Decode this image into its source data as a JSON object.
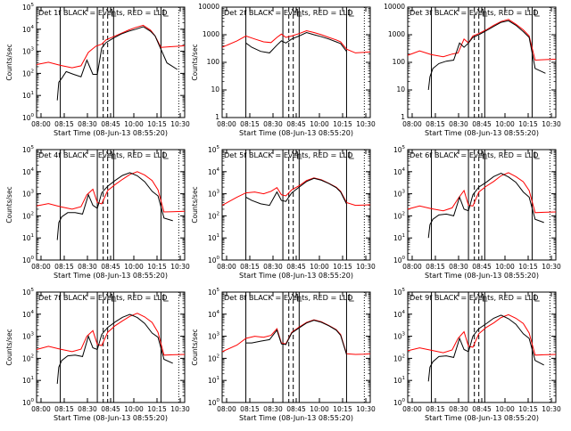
{
  "figure": {
    "time_label_prefix": "Start Time (",
    "time_label_start": "08-Jun-13 08:55:20",
    "time_label_suffix": ")"
  },
  "chart_data": [
    {
      "type": "line",
      "title": "Det 1f BLACK = Events, RED = LLD",
      "ylabel": "Counts/sec",
      "yscale": "log",
      "ylim": [
        1,
        100000
      ],
      "ytick_base": "10",
      "ytick_exponents": [
        "0",
        "1",
        "2",
        "3",
        "4",
        "5"
      ],
      "xticks": [
        "08:00",
        "08:15",
        "08:30",
        "08:45",
        "10:00",
        "10:15",
        "10:30"
      ],
      "series": [
        {
          "color": "#ff0000",
          "x": [
            0.0,
            0.08,
            0.16,
            0.24,
            0.3,
            0.35,
            0.4,
            0.44,
            0.47,
            0.52,
            0.57,
            0.62,
            0.67,
            0.72,
            0.77,
            0.8,
            0.84,
            0.9,
            0.96,
            1.0
          ],
          "y": [
            250,
            320,
            230,
            180,
            220,
            900,
            1700,
            2100,
            3300,
            4600,
            6400,
            9000,
            12000,
            15000,
            9000,
            5000,
            1500,
            1600,
            1700,
            1800
          ]
        },
        {
          "color": "#000000",
          "x": [
            0.14,
            0.15,
            0.17,
            0.2,
            0.25,
            0.3,
            0.34,
            0.38,
            0.41,
            0.44,
            0.47,
            0.52,
            0.57,
            0.62,
            0.67,
            0.72,
            0.77,
            0.8,
            0.88,
            0.95
          ],
          "y": [
            6,
            40,
            60,
            120,
            90,
            70,
            400,
            90,
            90,
            1400,
            2500,
            4000,
            6000,
            8000,
            10000,
            13000,
            8000,
            5000,
            300,
            150
          ]
        }
      ],
      "shade_x": [
        0.16,
        0.87
      ]
    },
    {
      "type": "line",
      "title": "Det 2f BLACK = Events, RED = LLD",
      "ylabel": "Counts/sec",
      "yscale": "log",
      "ylim": [
        1,
        10000
      ],
      "ytick_labels": [
        "1",
        "10",
        "100",
        "1000",
        "10000"
      ],
      "xticks": [
        "08:00",
        "08:15",
        "08:30",
        "08:45",
        "10:00",
        "10:15",
        "10:30"
      ],
      "series": [
        {
          "color": "#ff0000",
          "x": [
            0.0,
            0.1,
            0.16,
            0.22,
            0.28,
            0.33,
            0.37,
            0.4,
            0.43,
            0.47,
            0.52,
            0.57,
            0.62,
            0.67,
            0.72,
            0.77,
            0.8,
            0.84,
            0.9,
            0.96,
            1.0
          ],
          "y": [
            350,
            600,
            900,
            700,
            550,
            520,
            800,
            1050,
            800,
            900,
            1100,
            1400,
            1200,
            1000,
            800,
            650,
            550,
            300,
            220,
            230,
            240
          ]
        },
        {
          "color": "#000000",
          "x": [
            0.16,
            0.2,
            0.26,
            0.32,
            0.37,
            0.4,
            0.43,
            0.47,
            0.52,
            0.57,
            0.62,
            0.67,
            0.72,
            0.77,
            0.8,
            0.84
          ],
          "y": [
            500,
            350,
            250,
            220,
            420,
            600,
            500,
            700,
            900,
            1200,
            1000,
            850,
            700,
            550,
            480,
            250
          ]
        }
      ],
      "shade_x": [
        0.16,
        0.84
      ]
    },
    {
      "type": "line",
      "title": "Det 3f BLACK = Events, RED = LLD",
      "ylabel": "",
      "yscale": "log",
      "ylim": [
        1,
        10000
      ],
      "ytick_labels": [
        "1",
        "10",
        "100",
        "1000",
        "10000"
      ],
      "xticks": [
        "08:00",
        "08:15",
        "08:30",
        "08:45",
        "10:00",
        "10:15",
        "10:30"
      ],
      "series": [
        {
          "color": "#ff0000",
          "x": [
            0.0,
            0.08,
            0.16,
            0.24,
            0.3,
            0.34,
            0.38,
            0.41,
            0.44,
            0.48,
            0.53,
            0.58,
            0.63,
            0.68,
            0.73,
            0.78,
            0.82,
            0.86,
            0.92,
            1.0
          ],
          "y": [
            180,
            260,
            190,
            160,
            200,
            220,
            700,
            500,
            900,
            1100,
            1500,
            2200,
            3000,
            3600,
            2400,
            1500,
            900,
            120,
            125,
            130
          ]
        },
        {
          "color": "#000000",
          "x": [
            0.14,
            0.15,
            0.17,
            0.21,
            0.26,
            0.31,
            0.35,
            0.38,
            0.41,
            0.44,
            0.48,
            0.53,
            0.58,
            0.63,
            0.68,
            0.73,
            0.78,
            0.82,
            0.86,
            0.93
          ],
          "y": [
            10,
            30,
            60,
            90,
            110,
            120,
            500,
            350,
            500,
            800,
            1000,
            1400,
            2000,
            2800,
            3200,
            2200,
            1300,
            800,
            60,
            40
          ]
        }
      ],
      "shade_x": [
        0.16,
        0.86
      ]
    },
    {
      "type": "line",
      "title": "Det 4f BLACK = Events, RED = LLD",
      "ylabel": "Counts/sec",
      "yscale": "log",
      "ylim": [
        1,
        100000
      ],
      "ytick_base": "10",
      "ytick_exponents": [
        "0",
        "1",
        "2",
        "3",
        "4",
        "5"
      ],
      "xticks": [
        "08:00",
        "08:15",
        "08:30",
        "08:45",
        "10:00",
        "10:15",
        "10:30"
      ],
      "series": [
        {
          "color": "#ff0000",
          "x": [
            0.0,
            0.08,
            0.16,
            0.24,
            0.3,
            0.34,
            0.38,
            0.41,
            0.44,
            0.48,
            0.53,
            0.58,
            0.63,
            0.68,
            0.73,
            0.78,
            0.82,
            0.86,
            0.92,
            1.0
          ],
          "y": [
            280,
            360,
            260,
            200,
            260,
            900,
            1600,
            400,
            350,
            1400,
            2600,
            4500,
            7500,
            10000,
            7000,
            4000,
            1500,
            150,
            155,
            160
          ]
        },
        {
          "color": "#000000",
          "x": [
            0.14,
            0.15,
            0.17,
            0.21,
            0.26,
            0.31,
            0.35,
            0.38,
            0.41,
            0.44,
            0.48,
            0.53,
            0.58,
            0.63,
            0.68,
            0.73,
            0.78,
            0.82,
            0.86,
            0.92
          ],
          "y": [
            8,
            50,
            90,
            140,
            140,
            120,
            900,
            300,
            220,
            1100,
            2200,
            4000,
            6800,
            9000,
            6500,
            3500,
            1300,
            800,
            80,
            60
          ]
        }
      ],
      "shade_x": [
        0.16,
        0.86
      ]
    },
    {
      "type": "line",
      "title": "Det 5f BLACK = Events, RED = LLD",
      "ylabel": "Counts/sec",
      "yscale": "log",
      "ylim": [
        1,
        100000
      ],
      "ytick_base": "10",
      "ytick_exponents": [
        "0",
        "1",
        "2",
        "3",
        "4",
        "5"
      ],
      "xticks": [
        "08:00",
        "08:15",
        "08:30",
        "08:45",
        "10:00",
        "10:15",
        "10:30"
      ],
      "series": [
        {
          "color": "#ff0000",
          "x": [
            0.0,
            0.1,
            0.16,
            0.22,
            0.28,
            0.33,
            0.37,
            0.4,
            0.43,
            0.47,
            0.52,
            0.57,
            0.62,
            0.67,
            0.72,
            0.77,
            0.8,
            0.84,
            0.9,
            0.96,
            1.0
          ],
          "y": [
            300,
            700,
            1100,
            1200,
            1000,
            1300,
            1900,
            900,
            800,
            1500,
            2300,
            4000,
            5200,
            4300,
            3000,
            2000,
            1300,
            400,
            300,
            310,
            320
          ]
        },
        {
          "color": "#000000",
          "x": [
            0.16,
            0.2,
            0.26,
            0.32,
            0.37,
            0.4,
            0.43,
            0.47,
            0.52,
            0.57,
            0.62,
            0.67,
            0.72,
            0.77,
            0.8,
            0.84
          ],
          "y": [
            700,
            500,
            350,
            300,
            1200,
            500,
            450,
            1100,
            2000,
            3600,
            5000,
            4100,
            2900,
            1900,
            1200,
            350
          ]
        }
      ],
      "shade_x": [
        0.16,
        0.84
      ]
    },
    {
      "type": "line",
      "title": "Det 6f BLACK = Events, RED = LLD",
      "ylabel": "",
      "yscale": "log",
      "ylim": [
        1,
        100000
      ],
      "ytick_base": "10",
      "ytick_exponents": [
        "0",
        "1",
        "2",
        "3",
        "4",
        "5"
      ],
      "xticks": [
        "08:00",
        "08:15",
        "08:30",
        "08:45",
        "10:00",
        "10:15",
        "10:30"
      ],
      "series": [
        {
          "color": "#ff0000",
          "x": [
            0.0,
            0.08,
            0.16,
            0.24,
            0.3,
            0.34,
            0.38,
            0.41,
            0.44,
            0.48,
            0.53,
            0.58,
            0.63,
            0.68,
            0.73,
            0.78,
            0.82,
            0.86,
            0.92,
            1.0
          ],
          "y": [
            200,
            280,
            210,
            170,
            230,
            600,
            1400,
            300,
            280,
            1200,
            2200,
            3600,
            6500,
            9000,
            6000,
            3500,
            1400,
            140,
            145,
            150
          ]
        },
        {
          "color": "#000000",
          "x": [
            0.14,
            0.15,
            0.17,
            0.21,
            0.26,
            0.31,
            0.35,
            0.38,
            0.41,
            0.44,
            0.48,
            0.53,
            0.58,
            0.63,
            0.68,
            0.73,
            0.78,
            0.82,
            0.86,
            0.92
          ],
          "y": [
            10,
            40,
            70,
            110,
            120,
            100,
            700,
            200,
            170,
            900,
            2000,
            3300,
            6000,
            8500,
            5800,
            3300,
            1200,
            700,
            70,
            50
          ]
        }
      ],
      "shade_x": [
        0.16,
        0.86
      ]
    },
    {
      "type": "line",
      "title": "Det 7f BLACK = Events, RED = LLD",
      "ylabel": "Counts/sec",
      "yscale": "log",
      "ylim": [
        1,
        100000
      ],
      "ytick_base": "10",
      "ytick_exponents": [
        "0",
        "1",
        "2",
        "3",
        "4",
        "5"
      ],
      "xticks": [
        "08:00",
        "08:15",
        "08:30",
        "08:45",
        "10:00",
        "10:15",
        "10:30"
      ],
      "series": [
        {
          "color": "#ff0000",
          "x": [
            0.0,
            0.08,
            0.16,
            0.24,
            0.3,
            0.34,
            0.38,
            0.41,
            0.44,
            0.48,
            0.53,
            0.58,
            0.63,
            0.68,
            0.73,
            0.78,
            0.82,
            0.86,
            0.92,
            1.0
          ],
          "y": [
            250,
            350,
            260,
            200,
            260,
            1000,
            1800,
            420,
            380,
            1500,
            3000,
            5000,
            8000,
            11000,
            7500,
            4200,
            1500,
            140,
            145,
            150
          ]
        },
        {
          "color": "#000000",
          "x": [
            0.14,
            0.15,
            0.17,
            0.21,
            0.26,
            0.31,
            0.35,
            0.38,
            0.41,
            0.44,
            0.48,
            0.53,
            0.58,
            0.63,
            0.68,
            0.73,
            0.78,
            0.82,
            0.86,
            0.92
          ],
          "y": [
            7,
            40,
            80,
            130,
            140,
            120,
            1000,
            300,
            250,
            1200,
            2500,
            4400,
            7200,
            9800,
            7000,
            3800,
            1400,
            900,
            90,
            60
          ]
        }
      ],
      "shade_x": [
        0.16,
        0.86
      ]
    },
    {
      "type": "line",
      "title": "Det 8f BLACK = Events, RED = LLD",
      "ylabel": "Counts/sec",
      "yscale": "log",
      "ylim": [
        1,
        100000
      ],
      "ytick_base": "10",
      "ytick_exponents": [
        "0",
        "1",
        "2",
        "3",
        "4",
        "5"
      ],
      "xticks": [
        "08:00",
        "08:15",
        "08:30",
        "08:45",
        "10:00",
        "10:15",
        "10:30"
      ],
      "series": [
        {
          "color": "#ff0000",
          "x": [
            0.0,
            0.1,
            0.16,
            0.22,
            0.28,
            0.33,
            0.37,
            0.4,
            0.43,
            0.47,
            0.52,
            0.57,
            0.62,
            0.67,
            0.72,
            0.77,
            0.8,
            0.84,
            0.9,
            0.96,
            1.0
          ],
          "y": [
            200,
            400,
            800,
            1000,
            900,
            1100,
            2200,
            500,
            450,
            1500,
            2600,
            4200,
            5500,
            4500,
            3100,
            2000,
            1200,
            160,
            150,
            155,
            160
          ]
        },
        {
          "color": "#000000",
          "x": [
            0.16,
            0.2,
            0.26,
            0.32,
            0.37,
            0.4,
            0.43,
            0.47,
            0.52,
            0.57,
            0.62,
            0.67,
            0.72,
            0.77,
            0.8,
            0.84
          ],
          "y": [
            500,
            500,
            600,
            700,
            1900,
            450,
            420,
            1400,
            2400,
            4000,
            5300,
            4300,
            3000,
            1900,
            1100,
            150
          ]
        }
      ],
      "shade_x": [
        0.16,
        0.84
      ]
    },
    {
      "type": "line",
      "title": "Det 9f BLACK = Events, RED = LLD",
      "ylabel": "",
      "yscale": "log",
      "ylim": [
        1,
        100000
      ],
      "ytick_base": "10",
      "ytick_exponents": [
        "0",
        "1",
        "2",
        "3",
        "4",
        "5"
      ],
      "xticks": [
        "08:00",
        "08:15",
        "08:30",
        "08:45",
        "10:00",
        "10:15",
        "10:30"
      ],
      "series": [
        {
          "color": "#ff0000",
          "x": [
            0.0,
            0.08,
            0.16,
            0.24,
            0.3,
            0.34,
            0.38,
            0.41,
            0.44,
            0.48,
            0.53,
            0.58,
            0.63,
            0.68,
            0.73,
            0.78,
            0.82,
            0.86,
            0.92,
            1.0
          ],
          "y": [
            220,
            300,
            230,
            180,
            240,
            800,
            1600,
            350,
            320,
            1300,
            2500,
            4000,
            7000,
            9500,
            6500,
            3800,
            1400,
            140,
            145,
            150
          ]
        },
        {
          "color": "#000000",
          "x": [
            0.14,
            0.15,
            0.17,
            0.21,
            0.26,
            0.31,
            0.35,
            0.38,
            0.41,
            0.44,
            0.48,
            0.53,
            0.58,
            0.63,
            0.68,
            0.73,
            0.78,
            0.82,
            0.86,
            0.92
          ],
          "y": [
            9,
            40,
            70,
            120,
            130,
            110,
            800,
            250,
            200,
            1000,
            2200,
            3700,
            6500,
            9000,
            6200,
            3500,
            1300,
            800,
            80,
            50
          ]
        }
      ],
      "shade_x": [
        0.16,
        0.86
      ]
    }
  ]
}
